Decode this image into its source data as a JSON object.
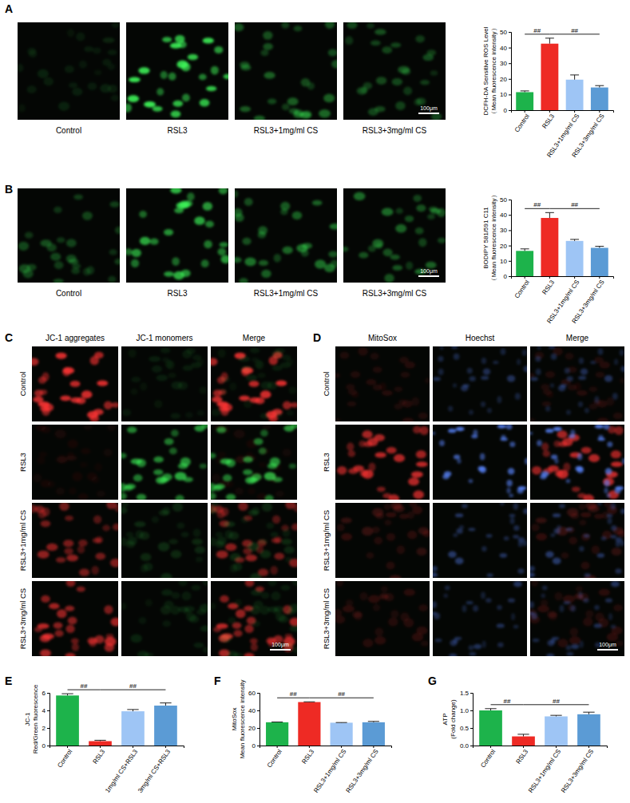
{
  "chart_data": [
    {
      "type": "bar",
      "ylabel": [
        "DCFH-DA Sensitive ROS Level",
        "（Mean fluorescence intensity）"
      ],
      "categories": [
        "Control",
        "RSL3",
        "RSL3+1mg/ml CS",
        "RSL3+3mg/ml CS"
      ],
      "values": [
        11.5,
        42.5,
        19.5,
        14.5
      ],
      "errors": [
        0.8,
        3.5,
        3.0,
        1.2
      ],
      "colors": [
        "#1db34b",
        "#ee2a24",
        "#9ec5f5",
        "#5b9bd5"
      ],
      "ylim": [
        0,
        50
      ],
      "yticks": [
        0,
        10,
        20,
        30,
        40,
        50
      ],
      "annotations": [
        {
          "text": "##",
          "from": 0,
          "to": 1
        },
        {
          "text": "##",
          "from": 1,
          "to": 3
        }
      ]
    },
    {
      "type": "bar",
      "ylabel": [
        "BODIPY 581/591 C11",
        "（Mean fluorescence intensity）"
      ],
      "categories": [
        "Control",
        "RSL3",
        "RSL3+1mg/ml CS",
        "RSL3+3mg/ml CS"
      ],
      "values": [
        16.5,
        38,
        23,
        18.5
      ],
      "errors": [
        1.3,
        3.5,
        1.0,
        1.0
      ],
      "colors": [
        "#1db34b",
        "#ee2a24",
        "#9ec5f5",
        "#5b9bd5"
      ],
      "ylim": [
        0,
        50
      ],
      "yticks": [
        0,
        10,
        20,
        30,
        40,
        50
      ],
      "annotations": [
        {
          "text": "##",
          "from": 0,
          "to": 1
        },
        {
          "text": "##",
          "from": 1,
          "to": 3
        }
      ]
    },
    {
      "type": "bar",
      "ylabel": [
        "JC-1",
        "Red/Green fluorescence"
      ],
      "categories": [
        "Control",
        "RSL3",
        "1mg/ml CS+RSL3",
        "3mg/ml CS+RSL3"
      ],
      "values": [
        5.7,
        0.5,
        3.9,
        4.55
      ],
      "errors": [
        0.2,
        0.1,
        0.2,
        0.3
      ],
      "colors": [
        "#1db34b",
        "#ee2a24",
        "#9ec5f5",
        "#5b9bd5"
      ],
      "ylim": [
        0,
        6
      ],
      "yticks": [
        0,
        2,
        4,
        6
      ],
      "annotations": [
        {
          "text": "##",
          "from": 0,
          "to": 1
        },
        {
          "text": "##",
          "from": 1,
          "to": 3
        }
      ]
    },
    {
      "type": "bar",
      "ylabel": [
        "MitoSox",
        "Mean fluorescence intensity"
      ],
      "categories": [
        "Control",
        "RSL3",
        "RSL3+1mg/ml CS",
        "RSL3+3mg/ml CS"
      ],
      "values": [
        26.5,
        49.5,
        26,
        26.5
      ],
      "errors": [
        0.3,
        0.3,
        0.2,
        1.0
      ],
      "colors": [
        "#1db34b",
        "#ee2a24",
        "#9ec5f5",
        "#5b9bd5"
      ],
      "ylim": [
        0,
        60
      ],
      "yticks": [
        0,
        20,
        40,
        60
      ],
      "annotations": [
        {
          "text": "##",
          "from": 0,
          "to": 1
        },
        {
          "text": "##",
          "from": 1,
          "to": 3
        }
      ]
    },
    {
      "type": "bar",
      "ylabel": [
        "ATP",
        "(Fold change)"
      ],
      "categories": [
        "Control",
        "RSL3",
        "RSL3+1mg/ml CS",
        "RSL3+3mg/ml CS"
      ],
      "values": [
        1.0,
        0.26,
        0.83,
        0.89
      ],
      "errors": [
        0.05,
        0.06,
        0.03,
        0.06
      ],
      "colors": [
        "#1db34b",
        "#ee2a24",
        "#9ec5f5",
        "#5b9bd5"
      ],
      "ylim": [
        0,
        1.5
      ],
      "yticks": [
        {
          "value": 0,
          "label": "0.0"
        },
        {
          "value": 0.5,
          "label": "0.5"
        },
        {
          "value": 1,
          "label": "1.0"
        },
        {
          "value": 1.5,
          "label": "1.5"
        }
      ],
      "annotations": [
        {
          "text": "##",
          "from": 0,
          "to": 1
        },
        {
          "text": "##",
          "from": 1,
          "to": 3
        }
      ]
    }
  ],
  "figure": {
    "panels": [
      {
        "letter": "A",
        "image_captions": [
          "Control",
          "RSL3",
          "RSL3+1mg/ml CS",
          "RSL3+3mg/ml CS"
        ],
        "scale_bar": "100μm"
      },
      {
        "letter": "B",
        "image_captions": [
          "Control",
          "RSL3",
          "RSL3+1mg/ml CS",
          "RSL3+3mg/ml CS"
        ],
        "scale_bar": "100μm"
      },
      {
        "letter": "C",
        "columns": [
          "JC-1 aggregates",
          "JC-1 monomers",
          "Merge"
        ],
        "rows": [
          "Control",
          "RSL3",
          "RSL3+1mg/ml CS",
          "RSL3+3mg/ml CS"
        ],
        "scale_bar": "100μm"
      },
      {
        "letter": "D",
        "columns": [
          "MitoSox",
          "Hoechst",
          "Merge"
        ],
        "rows": [
          "Control",
          "RSL3",
          "RSL3+1mg/ml CS",
          "RSL3+3mg/ml CS"
        ],
        "scale_bar": "100μm"
      },
      {
        "letter": "E"
      },
      {
        "letter": "F"
      },
      {
        "letter": "G"
      }
    ]
  }
}
